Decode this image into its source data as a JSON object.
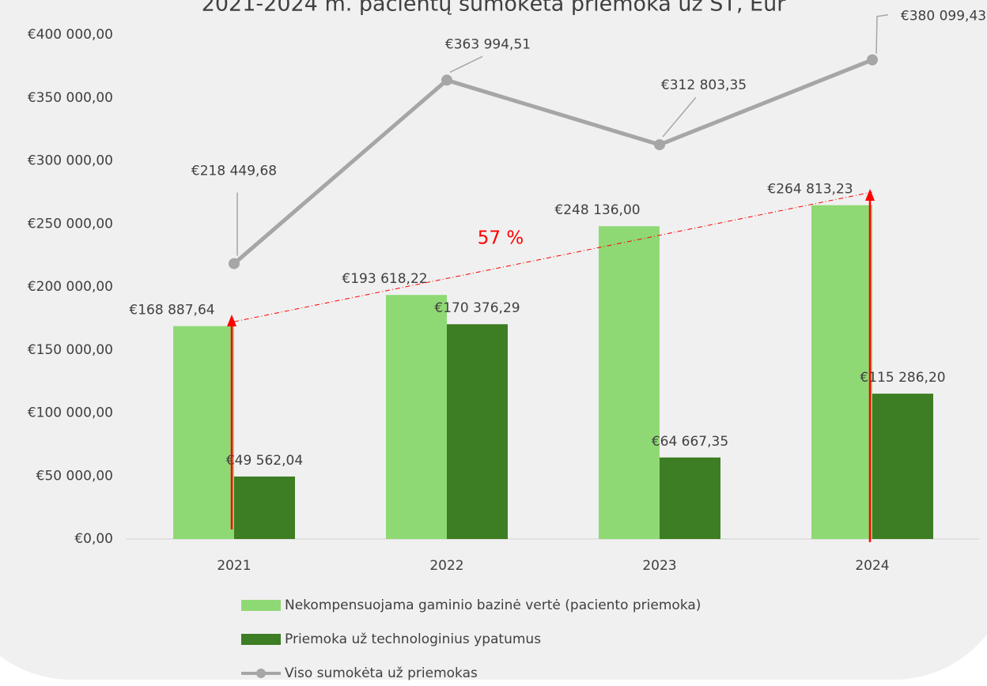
{
  "chart_data": {
    "type": "bar-line",
    "title": "2021-2024 m. pacientų sumokėta priemoka už ST, Eur",
    "categories": [
      "2021",
      "2022",
      "2023",
      "2024"
    ],
    "series": [
      {
        "name": "Nekompensuojama gaminio bazinė vertė (paciento priemoka)",
        "type": "bar",
        "color": "#8fd974",
        "values": [
          168887.64,
          193618.22,
          248136.0,
          264813.23
        ],
        "value_labels": [
          "€168 887,64",
          "€193 618,22",
          "€248 136,00",
          "€264 813,23"
        ]
      },
      {
        "name": "Priemoka už technologinius ypatumus",
        "type": "bar",
        "color": "#3d7d23",
        "values": [
          49562.04,
          170376.29,
          64667.35,
          115286.2
        ],
        "value_labels": [
          "€49 562,04",
          "€170 376,29",
          "€64 667,35",
          "€115 286,20"
        ]
      },
      {
        "name": "Viso sumokėta už priemokas",
        "type": "line",
        "color": "#a6a6a6",
        "values": [
          218449.68,
          363994.51,
          312803.35,
          380099.43
        ],
        "value_labels": [
          "€218 449,68",
          "€363 994,51",
          "€312 803,35",
          "€380 099,43"
        ]
      }
    ],
    "ylim": [
      0,
      400000
    ],
    "yticks": [
      {
        "value": 0,
        "label": "€0,00"
      },
      {
        "value": 50000,
        "label": "€50 000,00"
      },
      {
        "value": 100000,
        "label": "€100 000,00"
      },
      {
        "value": 150000,
        "label": "€150 000,00"
      },
      {
        "value": 200000,
        "label": "€200 000,00"
      },
      {
        "value": 250000,
        "label": "€250 000,00"
      },
      {
        "value": 300000,
        "label": "€300 000,00"
      },
      {
        "value": 350000,
        "label": "€350 000,00"
      },
      {
        "value": 400000,
        "label": "€400 000,00"
      }
    ],
    "annotations": [
      "57 %"
    ],
    "legend": "bottom"
  }
}
